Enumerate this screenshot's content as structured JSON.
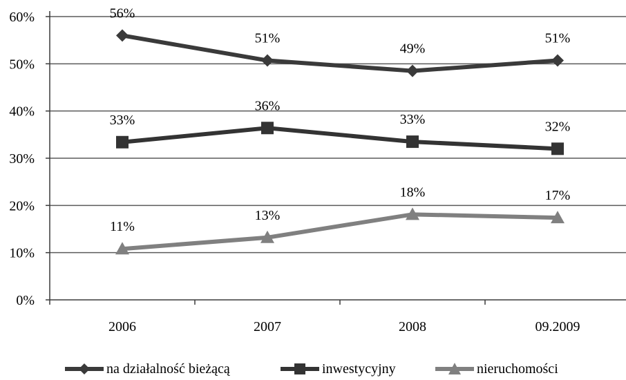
{
  "chart_data": {
    "type": "line",
    "categories": [
      "2006",
      "2007",
      "2008",
      "09.2009"
    ],
    "series": [
      {
        "name": "na działalność bieżącą",
        "values": [
          56,
          50.7,
          48.5,
          50.7
        ],
        "labels": [
          "56%",
          "51%",
          "49%",
          "51%"
        ],
        "marker": "diamond",
        "color": "#3a3a3a"
      },
      {
        "name": "inwestycyjny",
        "values": [
          33.4,
          36.4,
          33.5,
          32
        ],
        "labels": [
          "33%",
          "36%",
          "33%",
          "32%"
        ],
        "marker": "square",
        "color": "#333333"
      },
      {
        "name": "nieruchomości",
        "values": [
          10.8,
          13.2,
          18.1,
          17.4
        ],
        "labels": [
          "11%",
          "13%",
          "18%",
          "17%"
        ],
        "marker": "triangle",
        "color": "#808080"
      }
    ],
    "ylim": [
      0,
      60
    ],
    "yticks": [
      0,
      10,
      20,
      30,
      40,
      50,
      60
    ],
    "ytick_labels": [
      "0%",
      "10%",
      "20%",
      "30%",
      "40%",
      "50%",
      "60%"
    ],
    "grid": true,
    "legend": "bottom",
    "title": "",
    "xlabel": "",
    "ylabel": ""
  }
}
